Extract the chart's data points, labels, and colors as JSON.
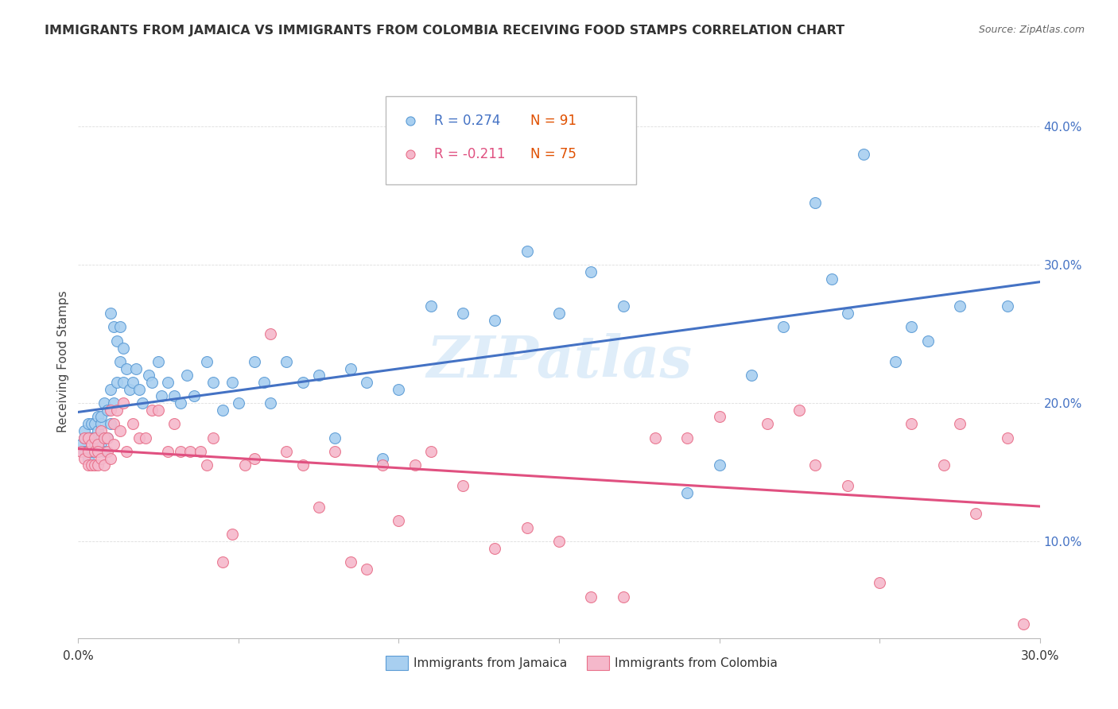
{
  "title": "IMMIGRANTS FROM JAMAICA VS IMMIGRANTS FROM COLOMBIA RECEIVING FOOD STAMPS CORRELATION CHART",
  "source": "Source: ZipAtlas.com",
  "ylabel": "Receiving Food Stamps",
  "yticks": [
    0.1,
    0.2,
    0.3,
    0.4
  ],
  "ytick_labels": [
    "10.0%",
    "20.0%",
    "30.0%",
    "40.0%"
  ],
  "xrange": [
    0.0,
    0.3
  ],
  "yrange": [
    0.03,
    0.43
  ],
  "series1_label": "Immigrants from Jamaica",
  "series2_label": "Immigrants from Colombia",
  "series1_color": "#a8cff0",
  "series2_color": "#f5b8cb",
  "series1_edge_color": "#5b9bd5",
  "series2_edge_color": "#e8708a",
  "series1_line_color": "#4472c4",
  "series2_line_color": "#e05080",
  "legend_r1": "R = 0.274",
  "legend_n1": "N = 91",
  "legend_r2": "R = -0.211",
  "legend_n2": "N = 75",
  "watermark": "ZIPatlas",
  "title_color": "#333333",
  "source_color": "#666666",
  "grid_color": "#dddddd",
  "ytick_color": "#4472c4",
  "series1_x": [
    0.001,
    0.002,
    0.002,
    0.002,
    0.003,
    0.003,
    0.003,
    0.003,
    0.004,
    0.004,
    0.004,
    0.004,
    0.005,
    0.005,
    0.005,
    0.005,
    0.006,
    0.006,
    0.006,
    0.006,
    0.007,
    0.007,
    0.007,
    0.007,
    0.008,
    0.008,
    0.008,
    0.009,
    0.009,
    0.01,
    0.01,
    0.01,
    0.011,
    0.011,
    0.012,
    0.012,
    0.013,
    0.013,
    0.014,
    0.014,
    0.015,
    0.016,
    0.017,
    0.018,
    0.019,
    0.02,
    0.022,
    0.023,
    0.025,
    0.026,
    0.028,
    0.03,
    0.032,
    0.034,
    0.036,
    0.04,
    0.042,
    0.045,
    0.048,
    0.05,
    0.055,
    0.058,
    0.06,
    0.065,
    0.07,
    0.075,
    0.08,
    0.085,
    0.09,
    0.095,
    0.1,
    0.11,
    0.12,
    0.13,
    0.14,
    0.15,
    0.16,
    0.17,
    0.19,
    0.2,
    0.21,
    0.22,
    0.23,
    0.235,
    0.24,
    0.245,
    0.255,
    0.26,
    0.265,
    0.275,
    0.29
  ],
  "series1_y": [
    0.17,
    0.175,
    0.165,
    0.18,
    0.175,
    0.165,
    0.185,
    0.16,
    0.175,
    0.185,
    0.165,
    0.175,
    0.17,
    0.185,
    0.175,
    0.165,
    0.18,
    0.19,
    0.175,
    0.165,
    0.185,
    0.175,
    0.17,
    0.19,
    0.175,
    0.2,
    0.165,
    0.195,
    0.175,
    0.265,
    0.21,
    0.185,
    0.255,
    0.2,
    0.245,
    0.215,
    0.255,
    0.23,
    0.24,
    0.215,
    0.225,
    0.21,
    0.215,
    0.225,
    0.21,
    0.2,
    0.22,
    0.215,
    0.23,
    0.205,
    0.215,
    0.205,
    0.2,
    0.22,
    0.205,
    0.23,
    0.215,
    0.195,
    0.215,
    0.2,
    0.23,
    0.215,
    0.2,
    0.23,
    0.215,
    0.22,
    0.175,
    0.225,
    0.215,
    0.16,
    0.21,
    0.27,
    0.265,
    0.26,
    0.31,
    0.265,
    0.295,
    0.27,
    0.135,
    0.155,
    0.22,
    0.255,
    0.345,
    0.29,
    0.265,
    0.38,
    0.23,
    0.255,
    0.245,
    0.27,
    0.27
  ],
  "series2_x": [
    0.001,
    0.002,
    0.002,
    0.003,
    0.003,
    0.003,
    0.004,
    0.004,
    0.005,
    0.005,
    0.005,
    0.006,
    0.006,
    0.006,
    0.007,
    0.007,
    0.008,
    0.008,
    0.009,
    0.009,
    0.01,
    0.01,
    0.011,
    0.011,
    0.012,
    0.013,
    0.014,
    0.015,
    0.017,
    0.019,
    0.021,
    0.023,
    0.025,
    0.028,
    0.03,
    0.032,
    0.035,
    0.038,
    0.04,
    0.042,
    0.045,
    0.048,
    0.052,
    0.055,
    0.06,
    0.065,
    0.07,
    0.075,
    0.08,
    0.085,
    0.09,
    0.095,
    0.1,
    0.105,
    0.11,
    0.12,
    0.13,
    0.14,
    0.15,
    0.16,
    0.17,
    0.18,
    0.19,
    0.2,
    0.215,
    0.225,
    0.23,
    0.24,
    0.25,
    0.26,
    0.27,
    0.275,
    0.28,
    0.29,
    0.295
  ],
  "series2_y": [
    0.165,
    0.16,
    0.175,
    0.165,
    0.155,
    0.175,
    0.17,
    0.155,
    0.165,
    0.175,
    0.155,
    0.17,
    0.155,
    0.165,
    0.18,
    0.16,
    0.175,
    0.155,
    0.165,
    0.175,
    0.195,
    0.16,
    0.185,
    0.17,
    0.195,
    0.18,
    0.2,
    0.165,
    0.185,
    0.175,
    0.175,
    0.195,
    0.195,
    0.165,
    0.185,
    0.165,
    0.165,
    0.165,
    0.155,
    0.175,
    0.085,
    0.105,
    0.155,
    0.16,
    0.25,
    0.165,
    0.155,
    0.125,
    0.165,
    0.085,
    0.08,
    0.155,
    0.115,
    0.155,
    0.165,
    0.14,
    0.095,
    0.11,
    0.1,
    0.06,
    0.06,
    0.175,
    0.175,
    0.19,
    0.185,
    0.195,
    0.155,
    0.14,
    0.07,
    0.185,
    0.155,
    0.185,
    0.12,
    0.175,
    0.04
  ]
}
